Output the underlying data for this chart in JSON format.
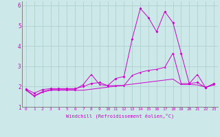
{
  "title": "",
  "xlabel": "Windchill (Refroidissement éolien,°C)",
  "bg_color": "#cce8e8",
  "grid_color": "#aacccc",
  "line_color": "#cc00cc",
  "xlim": [
    -0.5,
    23.5
  ],
  "ylim": [
    1.0,
    6.2
  ],
  "yticks": [
    1,
    2,
    3,
    4,
    5,
    6
  ],
  "xticks": [
    0,
    1,
    2,
    3,
    4,
    5,
    6,
    7,
    8,
    9,
    10,
    11,
    12,
    13,
    14,
    15,
    16,
    17,
    18,
    19,
    20,
    21,
    22,
    23
  ],
  "series1_x": [
    0,
    1,
    2,
    3,
    4,
    5,
    6,
    7,
    8,
    9,
    10,
    11,
    12,
    13,
    14,
    15,
    16,
    17,
    18,
    19,
    20,
    21,
    22,
    23
  ],
  "series1_y": [
    1.88,
    1.68,
    1.85,
    1.9,
    1.9,
    1.9,
    1.9,
    2.0,
    2.15,
    2.2,
    2.05,
    2.4,
    2.5,
    4.35,
    5.85,
    5.4,
    4.7,
    5.7,
    5.15,
    3.65,
    2.15,
    2.2,
    1.95,
    2.15
  ],
  "series2_x": [
    0,
    1,
    2,
    3,
    4,
    5,
    6,
    7,
    8,
    9,
    10,
    11,
    12,
    13,
    14,
    15,
    16,
    17,
    18,
    19,
    20,
    21,
    22,
    23
  ],
  "series2_y": [
    1.85,
    1.55,
    1.75,
    1.85,
    1.85,
    1.85,
    1.85,
    2.1,
    2.6,
    2.1,
    2.05,
    2.05,
    2.05,
    2.55,
    2.7,
    2.8,
    2.85,
    2.95,
    3.65,
    2.15,
    2.15,
    2.6,
    1.95,
    2.1
  ],
  "series3_x": [
    0,
    1,
    2,
    3,
    4,
    5,
    6,
    7,
    8,
    9,
    10,
    11,
    12,
    13,
    14,
    15,
    16,
    17,
    18,
    19,
    20,
    21,
    22,
    23
  ],
  "series3_y": [
    1.82,
    1.52,
    1.72,
    1.82,
    1.82,
    1.82,
    1.82,
    1.82,
    1.87,
    1.92,
    1.97,
    2.02,
    2.07,
    2.12,
    2.17,
    2.22,
    2.27,
    2.32,
    2.37,
    2.1,
    2.1,
    2.08,
    1.98,
    2.08
  ]
}
